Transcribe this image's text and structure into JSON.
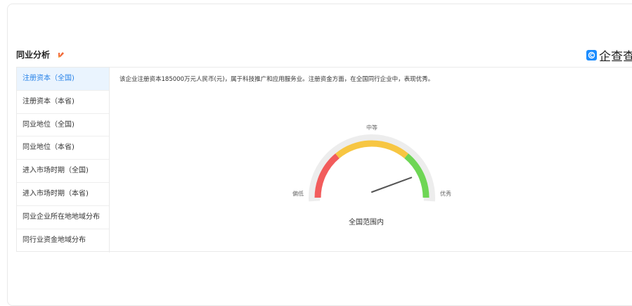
{
  "section": {
    "title": "同业分析"
  },
  "brand": {
    "name": "企查查",
    "mark": "©"
  },
  "sidebar": {
    "items": [
      {
        "label": "注册资本（全国)",
        "active": true
      },
      {
        "label": "注册资本（本省)"
      },
      {
        "label": "同业地位（全国)"
      },
      {
        "label": "同业地位（本省)"
      },
      {
        "label": "进入市场时期（全国)"
      },
      {
        "label": "进入市场时期（本省)"
      },
      {
        "label": "同业企业所在地地域分布"
      },
      {
        "label": "同行业资金地域分布"
      }
    ]
  },
  "content": {
    "description": "该企业注册资本185000万元人民币(元)，属于科技推广和应用服务业。注册资金方面，在全国同行企业中，表现优秀。",
    "scope_label": "全国范围内"
  },
  "gauge": {
    "labels": {
      "low": "偏低",
      "mid": "中等",
      "high": "优秀"
    },
    "value": 0.85,
    "colors": {
      "low": "#f25c5c",
      "mid": "#f7c642",
      "high": "#6ed655",
      "track": "#ededed",
      "needle": "#555555"
    }
  }
}
